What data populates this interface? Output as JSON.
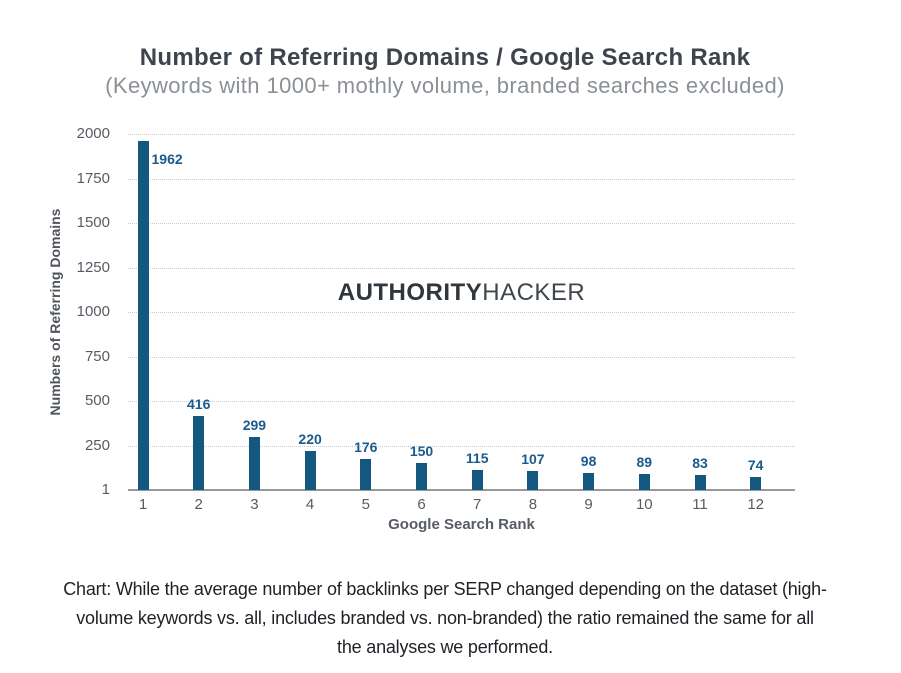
{
  "watermark": {
    "bold": "AUTHORITY",
    "regular": "HACKER"
  },
  "caption": {
    "lines": [
      "Chart: While the average number of backlinks per SERP changed depending on the dataset (high-",
      "volume keywords vs. all, includes branded vs. non-branded) the ratio remained the same for all",
      "the analyses we performed."
    ]
  },
  "chart_data": {
    "type": "bar",
    "title": "Number of Referring Domains / Google Search Rank",
    "subtitle": "(Keywords with 1000+ mothly volume, branded searches excluded)",
    "categories": [
      "1",
      "2",
      "3",
      "4",
      "5",
      "6",
      "7",
      "8",
      "9",
      "10",
      "11",
      "12"
    ],
    "values": [
      1962,
      416,
      299,
      220,
      176,
      150,
      115,
      107,
      98,
      89,
      83,
      74
    ],
    "xlabel": "Google Search Rank",
    "ylabel": "Numbers of Referring Domains",
    "yticks": [
      2000,
      1750,
      1500,
      1250,
      1000,
      750,
      500,
      250,
      1
    ],
    "ylim": [
      0,
      2000
    ],
    "grid": "horizontal-dotted",
    "legend": "none",
    "bar_color": "#15587f",
    "value_label_color": "#1a5a8d"
  }
}
